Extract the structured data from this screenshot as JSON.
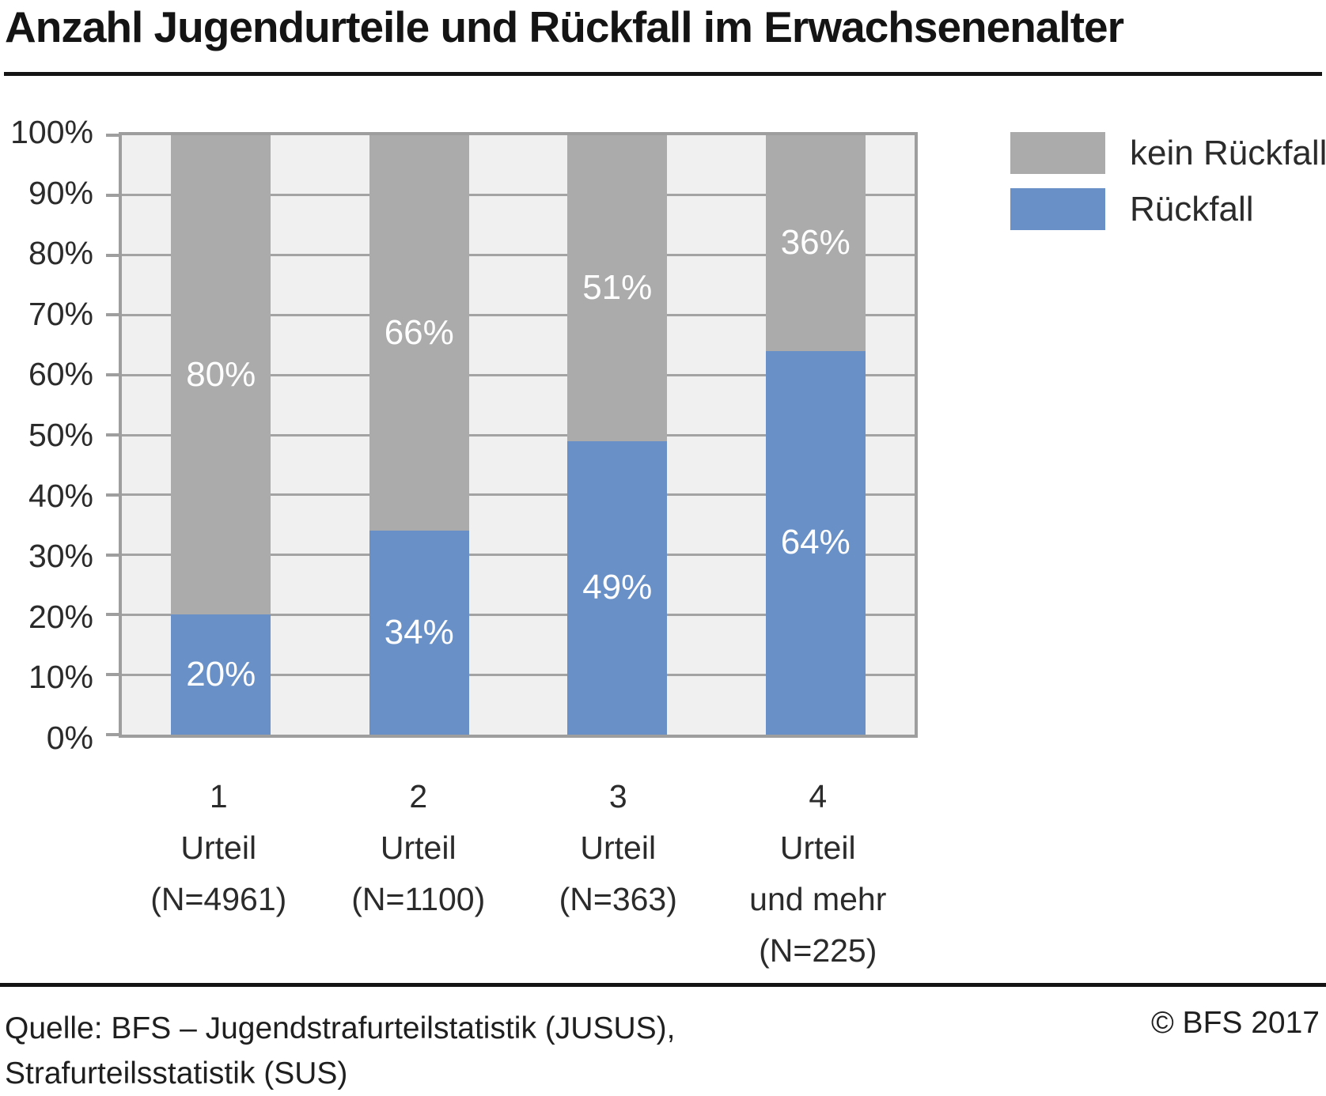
{
  "title": "Anzahl Jugendurteile und Rückfall im Erwachsenenalter",
  "chart_data": {
    "type": "bar",
    "stacked": true,
    "orientation": "vertical",
    "title": "Anzahl Jugendurteile und Rückfall im Erwachsenenalter",
    "categories": [
      "1 Urteil (N=4961)",
      "2 Urteil (N=1100)",
      "3 Urteil (N=363)",
      "4 Urteil und mehr (N=225)"
    ],
    "category_lines": [
      [
        "1",
        "Urteil",
        "(N=4961)"
      ],
      [
        "2",
        "Urteil",
        "(N=1100)"
      ],
      [
        "3",
        "Urteil",
        "(N=363)"
      ],
      [
        "4",
        "Urteil",
        "und mehr",
        "(N=225)"
      ]
    ],
    "series": [
      {
        "name": "Rückfall",
        "color": "#6991c8",
        "values": [
          20,
          34,
          49,
          64
        ]
      },
      {
        "name": "kein Rückfall",
        "color": "#ababab",
        "values": [
          80,
          66,
          51,
          36
        ]
      }
    ],
    "value_label_format": "{v}%",
    "value_label_color": "#ffffff",
    "ylim": [
      0,
      100
    ],
    "ytick_step": 10,
    "ytick_labels": [
      "0%",
      "10%",
      "20%",
      "30%",
      "40%",
      "50%",
      "60%",
      "70%",
      "80%",
      "90%",
      "100%"
    ],
    "grid": true,
    "legend_position": "top-right",
    "legend": [
      {
        "label": "kein Rückfall",
        "color": "#ababab"
      },
      {
        "label": "Rückfall",
        "color": "#6991c8"
      }
    ]
  },
  "colors": {
    "plot_background": "#f0f0f0",
    "gridline": "#a3a3a3",
    "axis": "#9e9e9e",
    "rule": "#141414",
    "text": "#2b2b2b",
    "bar_blue": "#6991c8",
    "bar_gray": "#ababab"
  },
  "footer": {
    "source_line1": "Quelle: BFS – Jugendstrafurteilstatistik (JUSUS),",
    "source_line2": "Strafurteilsstatistik (SUS)",
    "copyright": "© BFS 2017"
  }
}
